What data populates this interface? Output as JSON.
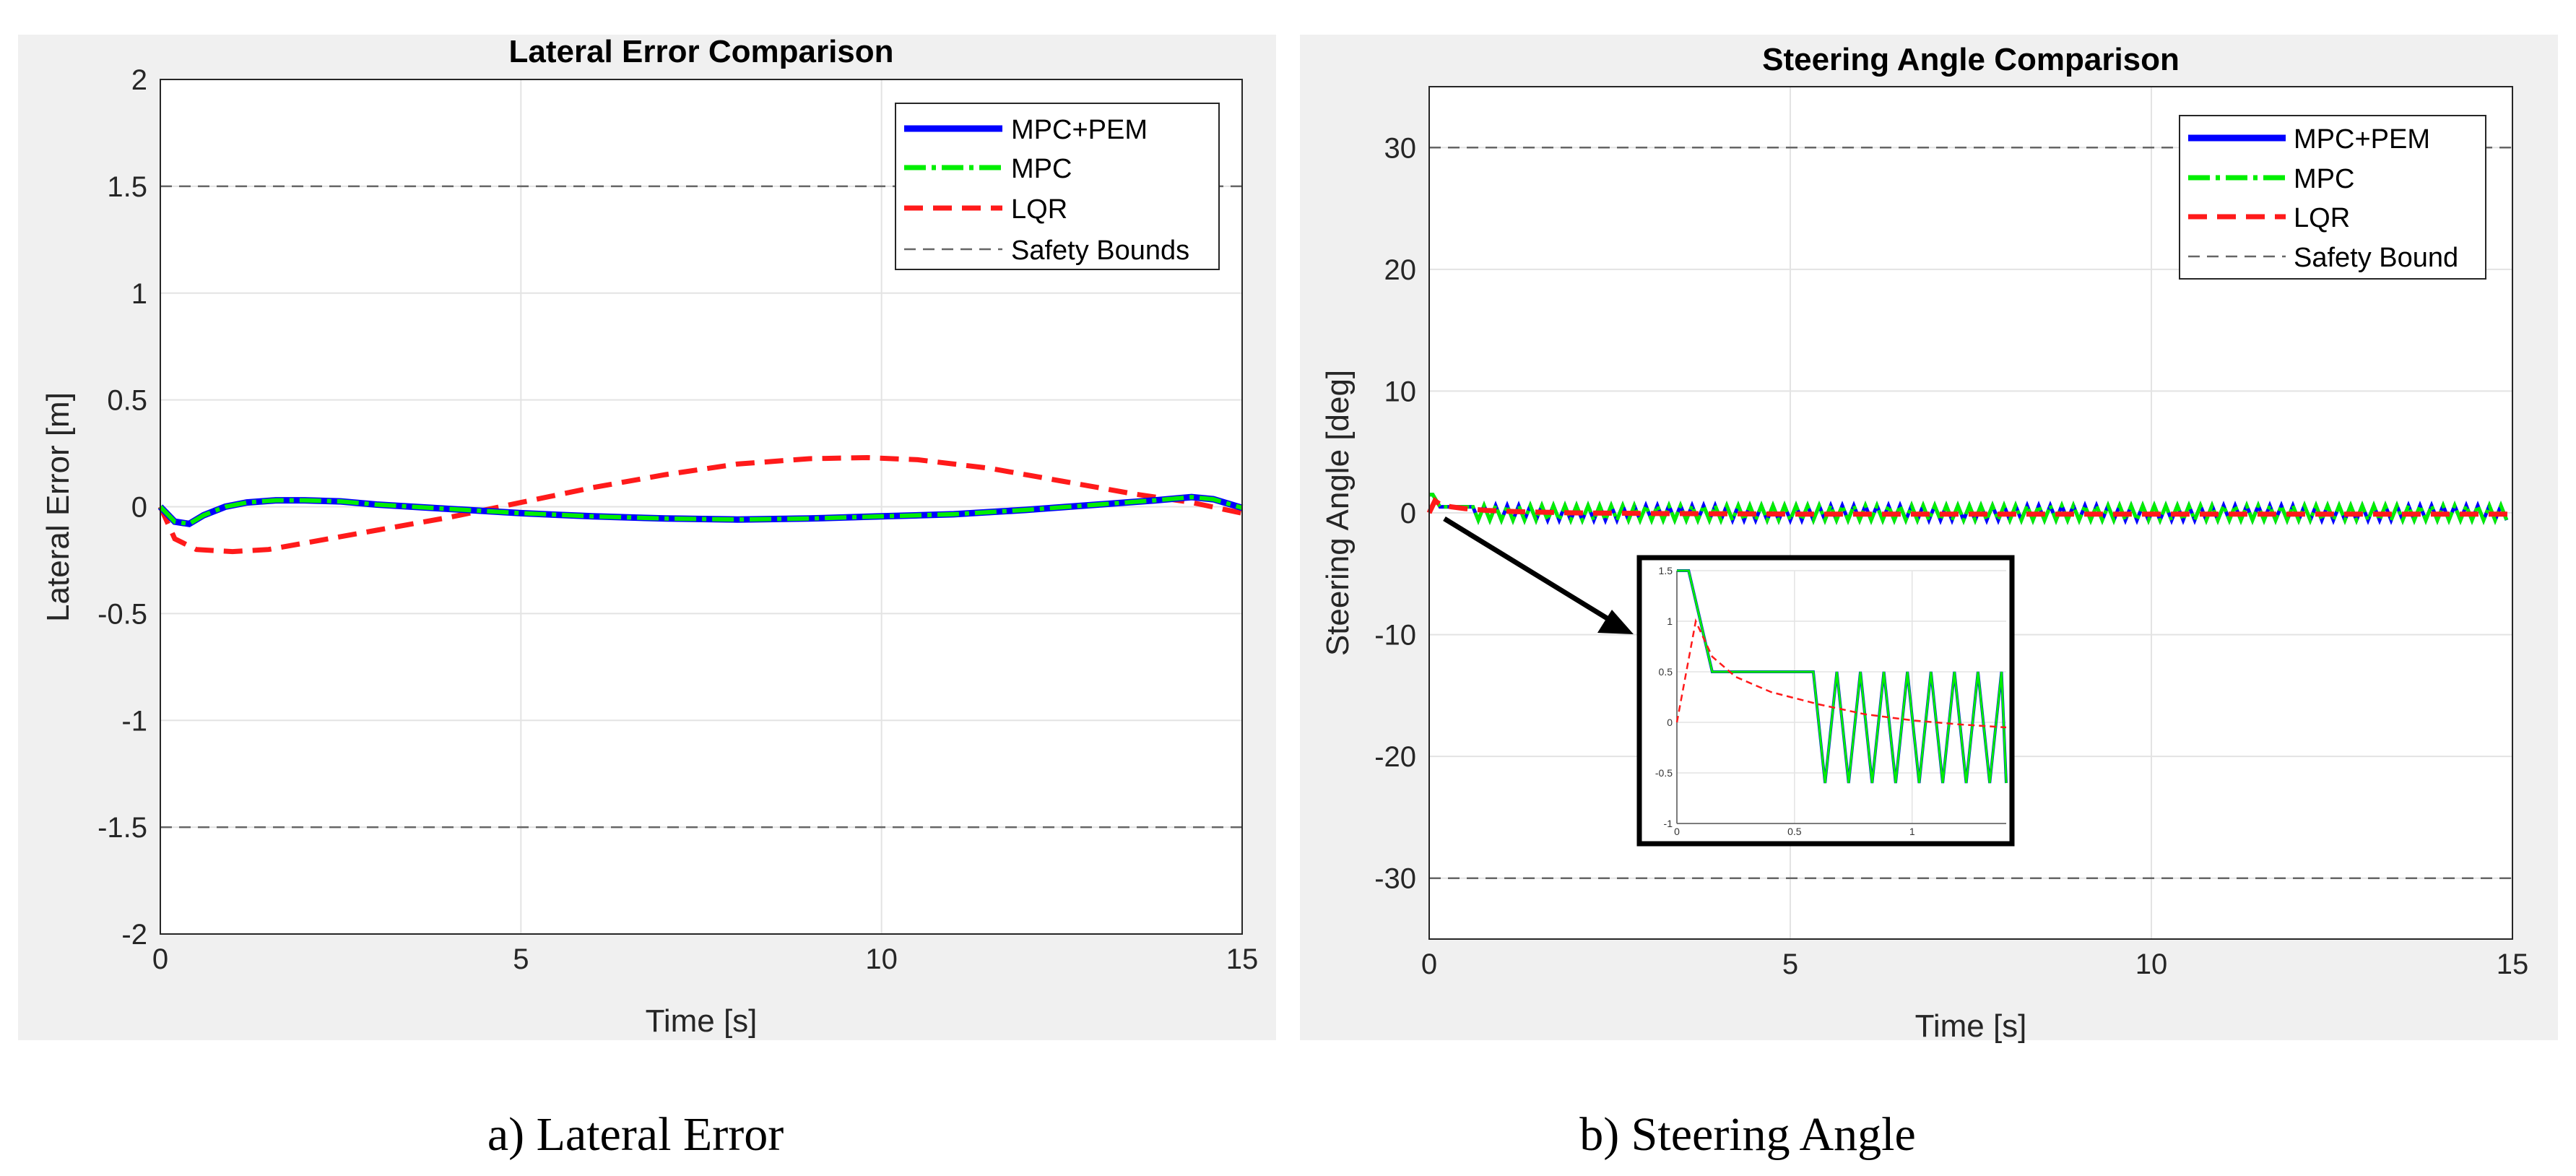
{
  "captions": {
    "left": "a) Lateral Error",
    "right": "b) Steering Angle"
  },
  "colors": {
    "panel_bg": "#f0f0f0",
    "plot_bg": "#ffffff",
    "grid": "#e3e3e3",
    "mpc_pem": "#0000ff",
    "mpc": "#00ee00",
    "lqr": "#ff1a1a",
    "bound": "#666666"
  },
  "chart_data": [
    {
      "type": "line",
      "title": "Lateral Error Comparison",
      "xlabel": "Time [s]",
      "ylabel": "Lateral Error [m]",
      "xlim": [
        0,
        15
      ],
      "ylim": [
        -2,
        2
      ],
      "xticks": [
        0,
        5,
        10,
        15
      ],
      "yticks": [
        -2,
        -1.5,
        -1,
        -0.5,
        0,
        0.5,
        1,
        1.5,
        2
      ],
      "xtick_labels": [
        "0",
        "5",
        "10",
        "15"
      ],
      "ytick_labels": [
        "-2",
        "-1.5",
        "-1",
        "-0.5",
        "0",
        "0.5",
        "1",
        "1.5",
        "2"
      ],
      "grid": true,
      "legend_position": "top-right",
      "series": [
        {
          "name": "MPC+PEM",
          "style": "solid",
          "x": [
            0,
            0.2,
            0.4,
            0.6,
            0.9,
            1.2,
            1.6,
            2,
            2.5,
            3,
            3.5,
            4,
            5,
            6,
            7,
            8,
            9,
            10,
            11,
            12,
            13,
            13.8,
            14.3,
            14.6,
            15
          ],
          "y": [
            0,
            -0.07,
            -0.08,
            -0.04,
            0.0,
            0.02,
            0.03,
            0.03,
            0.025,
            0.01,
            0.0,
            -0.01,
            -0.03,
            -0.045,
            -0.055,
            -0.06,
            -0.055,
            -0.045,
            -0.035,
            -0.015,
            0.01,
            0.03,
            0.045,
            0.035,
            -0.005
          ]
        },
        {
          "name": "MPC",
          "style": "dash-dot",
          "x": [
            0,
            0.2,
            0.4,
            0.6,
            0.9,
            1.2,
            1.6,
            2,
            2.5,
            3,
            3.5,
            4,
            5,
            6,
            7,
            8,
            9,
            10,
            11,
            12,
            13,
            13.8,
            14.3,
            14.6,
            15
          ],
          "y": [
            0,
            -0.07,
            -0.08,
            -0.04,
            0.0,
            0.02,
            0.03,
            0.03,
            0.025,
            0.01,
            0.0,
            -0.01,
            -0.03,
            -0.045,
            -0.055,
            -0.06,
            -0.055,
            -0.045,
            -0.035,
            -0.015,
            0.01,
            0.03,
            0.045,
            0.035,
            -0.005
          ]
        },
        {
          "name": "LQR",
          "style": "dashed",
          "x": [
            0,
            0.2,
            0.5,
            1,
            1.5,
            2,
            3,
            4,
            5,
            6,
            7,
            8,
            9,
            9.8,
            10.5,
            11.5,
            12.5,
            13.5,
            14.3,
            15
          ],
          "y": [
            0,
            -0.15,
            -0.2,
            -0.21,
            -0.2,
            -0.17,
            -0.11,
            -0.05,
            0.02,
            0.09,
            0.15,
            0.2,
            0.225,
            0.23,
            0.22,
            0.18,
            0.12,
            0.06,
            0.02,
            -0.03
          ]
        },
        {
          "name": "Safety Bounds",
          "style": "thin-dashed",
          "hlines": [
            1.5,
            -1.5
          ]
        }
      ]
    },
    {
      "type": "line",
      "title": "Steering Angle Comparison",
      "xlabel": "Time [s]",
      "ylabel": "Steering Angle [deg]",
      "xlim": [
        0,
        15
      ],
      "ylim": [
        -35,
        35
      ],
      "xticks": [
        0,
        5,
        10,
        15
      ],
      "yticks": [
        -30,
        -20,
        -10,
        0,
        10,
        20,
        30
      ],
      "xtick_labels": [
        "0",
        "5",
        "10",
        "15"
      ],
      "ytick_labels": [
        "-30",
        "-20",
        "-10",
        "0",
        "10",
        "20",
        "30"
      ],
      "grid": true,
      "legend_position": "top-right",
      "series": [
        {
          "name": "MPC+PEM",
          "style": "solid",
          "pattern": "oscillating",
          "x_start": 0.6,
          "x_end": 15,
          "period": 0.16,
          "amplitude": 0.6,
          "initial": [
            [
              0,
              1.5
            ],
            [
              0.05,
              1.5
            ],
            [
              0.15,
              0.5
            ],
            [
              0.6,
              0.5
            ]
          ]
        },
        {
          "name": "MPC",
          "style": "dash-dot",
          "pattern": "oscillating",
          "x_start": 0.6,
          "x_end": 15,
          "period": 0.16,
          "amplitude": 0.6,
          "initial": [
            [
              0,
              1.5
            ],
            [
              0.05,
              1.5
            ],
            [
              0.15,
              0.5
            ],
            [
              0.6,
              0.5
            ]
          ]
        },
        {
          "name": "LQR",
          "style": "dashed",
          "x": [
            0,
            0.08,
            0.15,
            0.3,
            0.5,
            0.8,
            1.2,
            2,
            3,
            5,
            8,
            12,
            15
          ],
          "y": [
            0,
            1.0,
            0.7,
            0.5,
            0.35,
            0.2,
            0.1,
            0.0,
            -0.05,
            -0.1,
            -0.1,
            -0.1,
            -0.1
          ]
        },
        {
          "name": "Safety Bound",
          "style": "thin-dashed",
          "hlines": [
            30,
            -30
          ]
        }
      ],
      "inset": {
        "xlim": [
          0,
          1.4
        ],
        "ylim": [
          -1,
          1.5
        ],
        "xticks": [
          0,
          0.5,
          1
        ],
        "yticks": [
          -1,
          -0.5,
          0,
          0.5,
          1,
          1.5
        ],
        "xtick_labels": [
          "0",
          "0.5",
          "1"
        ],
        "ytick_labels": [
          "-1",
          "-0.5",
          "0",
          "0.5",
          "1",
          "1.5"
        ],
        "mpc_x": [
          0,
          0.05,
          0.15,
          0.58,
          0.63,
          0.68,
          0.73,
          0.78,
          0.83,
          0.88,
          0.93,
          0.98,
          1.03,
          1.08,
          1.13,
          1.18,
          1.23,
          1.28,
          1.33,
          1.38,
          1.4
        ],
        "mpc_y": [
          1.5,
          1.5,
          0.5,
          0.5,
          -0.6,
          0.5,
          -0.6,
          0.5,
          -0.6,
          0.5,
          -0.6,
          0.5,
          -0.6,
          0.5,
          -0.6,
          0.5,
          -0.6,
          0.5,
          -0.6,
          0.5,
          -0.6
        ],
        "lqr_x": [
          0,
          0.08,
          0.15,
          0.25,
          0.4,
          0.6,
          0.8,
          1.0,
          1.2,
          1.4
        ],
        "lqr_y": [
          0,
          1.0,
          0.65,
          0.45,
          0.3,
          0.18,
          0.08,
          0.02,
          -0.02,
          -0.05
        ]
      }
    }
  ]
}
